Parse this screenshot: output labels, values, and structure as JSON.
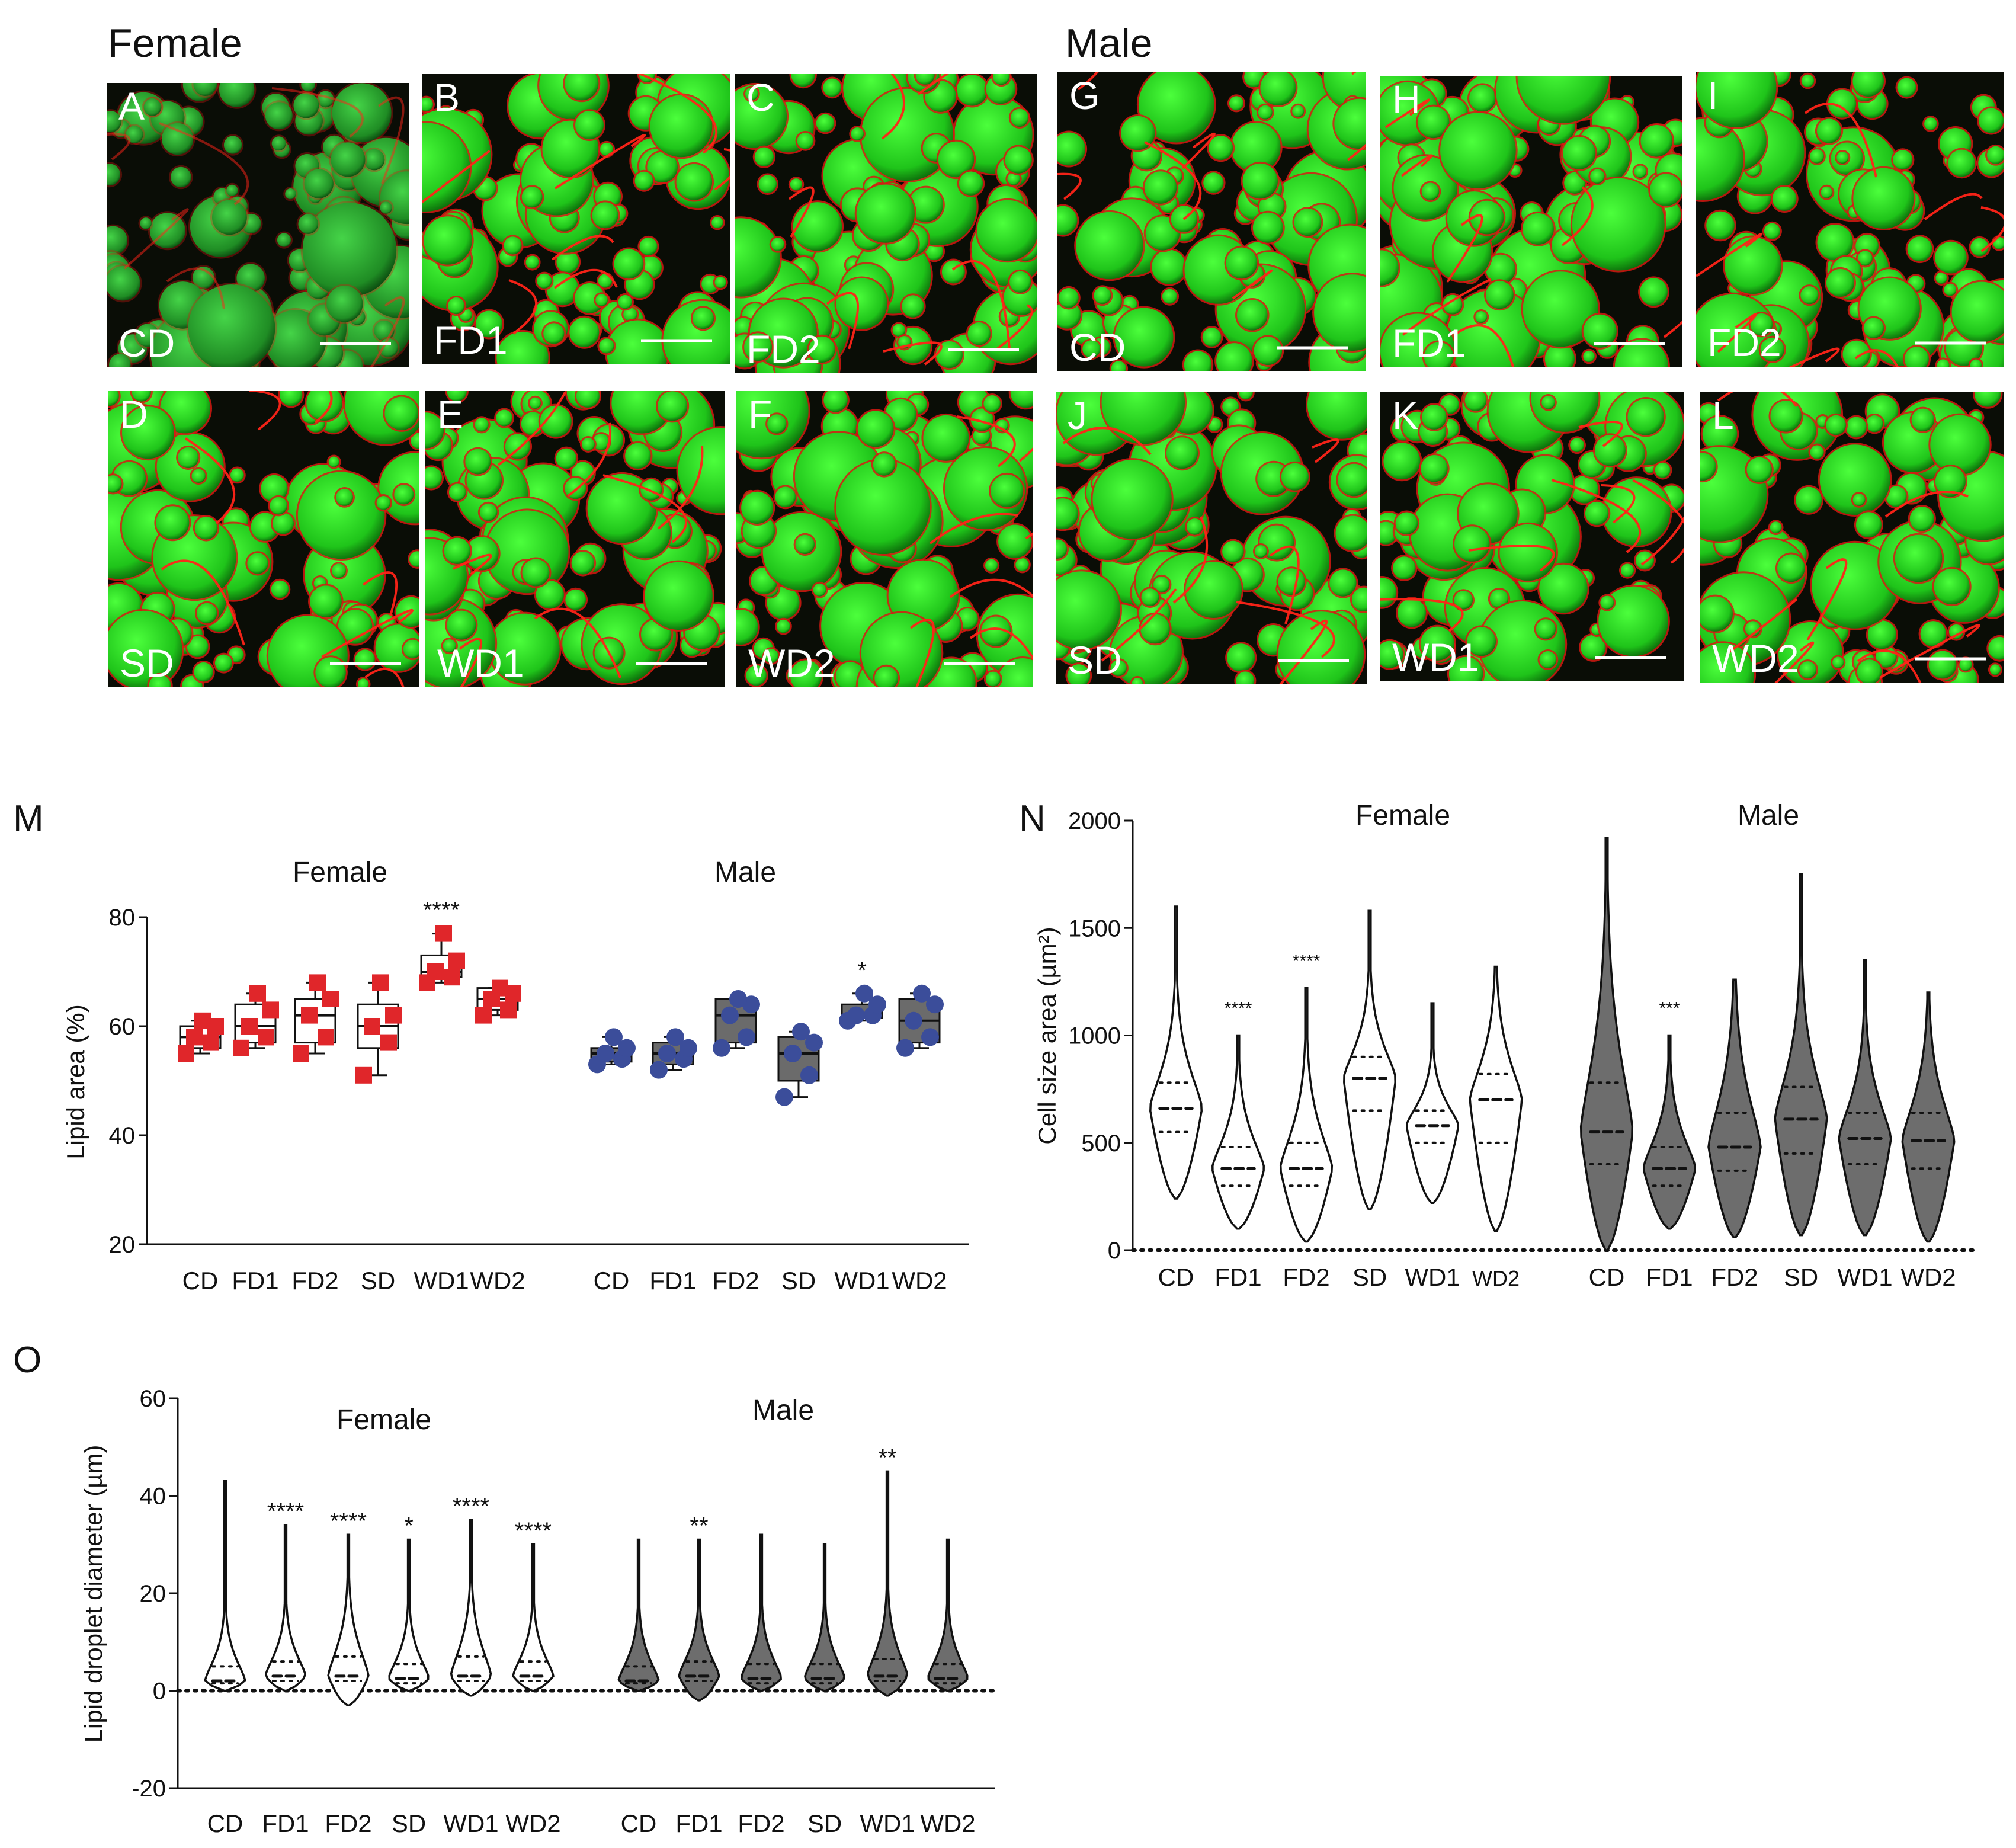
{
  "headers": {
    "female": "Female",
    "male": "Male"
  },
  "micro_panels": [
    {
      "letter": "A",
      "diet": "CD"
    },
    {
      "letter": "B",
      "diet": "FD1"
    },
    {
      "letter": "C",
      "diet": "FD2"
    },
    {
      "letter": "D",
      "diet": "SD"
    },
    {
      "letter": "E",
      "diet": "WD1"
    },
    {
      "letter": "F",
      "diet": "WD2"
    },
    {
      "letter": "G",
      "diet": "CD"
    },
    {
      "letter": "H",
      "diet": "FD1"
    },
    {
      "letter": "I",
      "diet": "FD2"
    },
    {
      "letter": "J",
      "diet": "SD"
    },
    {
      "letter": "K",
      "diet": "WD1"
    },
    {
      "letter": "L",
      "diet": "WD2"
    }
  ],
  "colors": {
    "female_marker": "#e0262a",
    "male_marker": "#3b4d9a",
    "male_fill": "#6b6b6b",
    "droplet_green": "#22d41c",
    "membrane_red": "#e31b13"
  },
  "chart_data": [
    {
      "panel": "M",
      "type": "box",
      "ylabel": "Lipid area (%)",
      "ylim": [
        20,
        80
      ],
      "yticks": [
        20,
        40,
        60,
        80
      ],
      "groups": [
        "Female",
        "Male"
      ],
      "categories": [
        "CD",
        "FD1",
        "FD2",
        "SD",
        "WD1",
        "WD2"
      ],
      "series": [
        {
          "name": "Female",
          "boxes": [
            {
              "min": 55,
              "q1": 56,
              "median": 58,
              "q3": 60,
              "max": 61,
              "points": [
                55,
                57,
                58,
                60,
                61
              ],
              "sig": ""
            },
            {
              "min": 56,
              "q1": 57,
              "median": 60,
              "q3": 64,
              "max": 66,
              "points": [
                56,
                58,
                60,
                63,
                66
              ],
              "sig": ""
            },
            {
              "min": 55,
              "q1": 57,
              "median": 62,
              "q3": 65,
              "max": 68,
              "points": [
                55,
                58,
                62,
                65,
                68
              ],
              "sig": ""
            },
            {
              "min": 51,
              "q1": 56,
              "median": 60,
              "q3": 64,
              "max": 68,
              "points": [
                51,
                57,
                60,
                62,
                68
              ],
              "sig": ""
            },
            {
              "min": 68,
              "q1": 69,
              "median": 70,
              "q3": 73,
              "max": 77,
              "points": [
                68,
                69,
                70,
                72,
                77
              ],
              "sig": "****"
            },
            {
              "min": 62,
              "q1": 63,
              "median": 65,
              "q3": 67,
              "max": 67,
              "points": [
                62,
                63,
                65,
                66,
                67
              ],
              "sig": ""
            }
          ]
        },
        {
          "name": "Male",
          "boxes": [
            {
              "min": 53,
              "q1": 53.5,
              "median": 55,
              "q3": 56,
              "max": 58,
              "points": [
                53,
                54,
                55,
                56,
                58
              ],
              "sig": ""
            },
            {
              "min": 52,
              "q1": 53,
              "median": 55,
              "q3": 57,
              "max": 58,
              "points": [
                52,
                54,
                55,
                56,
                58
              ],
              "sig": ""
            },
            {
              "min": 56,
              "q1": 57,
              "median": 62,
              "q3": 65,
              "max": 65,
              "points": [
                56,
                58,
                62,
                64,
                65
              ],
              "sig": ""
            },
            {
              "min": 47,
              "q1": 50,
              "median": 55,
              "q3": 58,
              "max": 59,
              "points": [
                47,
                51,
                55,
                57,
                59
              ],
              "sig": ""
            },
            {
              "min": 61,
              "q1": 61.5,
              "median": 62,
              "q3": 64,
              "max": 66,
              "points": [
                61,
                62,
                62,
                64,
                66
              ],
              "sig": "*"
            },
            {
              "min": 56,
              "q1": 57,
              "median": 61,
              "q3": 65,
              "max": 66,
              "points": [
                56,
                58,
                61,
                64,
                66
              ],
              "sig": ""
            }
          ]
        }
      ]
    },
    {
      "panel": "N",
      "type": "violin",
      "ylabel": "Cell size area (µm²)",
      "ylim": [
        0,
        2000
      ],
      "yticks": [
        0,
        500,
        1000,
        1500,
        2000
      ],
      "groups": [
        "Female",
        "Male"
      ],
      "categories": [
        "CD",
        "FD1",
        "FD2",
        "SD",
        "WD1",
        "WD2"
      ],
      "series": [
        {
          "name": "Female",
          "violins": [
            {
              "min": 240,
              "max": 1600,
              "q1": 550,
              "median": 660,
              "q3": 780,
              "sig": ""
            },
            {
              "min": 100,
              "max": 1000,
              "q1": 300,
              "median": 380,
              "q3": 480,
              "sig": "****"
            },
            {
              "min": 40,
              "max": 1220,
              "q1": 300,
              "median": 380,
              "q3": 500,
              "sig": "****"
            },
            {
              "min": 190,
              "max": 1580,
              "q1": 650,
              "median": 800,
              "q3": 900,
              "sig": ""
            },
            {
              "min": 220,
              "max": 1150,
              "q1": 500,
              "median": 580,
              "q3": 650,
              "sig": ""
            },
            {
              "min": 90,
              "max": 1320,
              "q1": 500,
              "median": 700,
              "q3": 820,
              "sig": ""
            }
          ]
        },
        {
          "name": "Male",
          "violins": [
            {
              "min": 0,
              "max": 1920,
              "q1": 400,
              "median": 550,
              "q3": 780,
              "sig": ""
            },
            {
              "min": 100,
              "max": 1000,
              "q1": 300,
              "median": 380,
              "q3": 480,
              "sig": "***"
            },
            {
              "min": 60,
              "max": 1260,
              "q1": 370,
              "median": 480,
              "q3": 640,
              "sig": ""
            },
            {
              "min": 70,
              "max": 1750,
              "q1": 450,
              "median": 610,
              "q3": 760,
              "sig": ""
            },
            {
              "min": 70,
              "max": 1350,
              "q1": 400,
              "median": 520,
              "q3": 640,
              "sig": ""
            },
            {
              "min": 40,
              "max": 1200,
              "q1": 380,
              "median": 510,
              "q3": 640,
              "sig": ""
            }
          ]
        }
      ]
    },
    {
      "panel": "O",
      "type": "violin",
      "ylabel": "Lipid droplet diameter (µm)",
      "ylim": [
        -20,
        60
      ],
      "yticks": [
        -20,
        0,
        20,
        40,
        60
      ],
      "groups": [
        "Female",
        "Male"
      ],
      "categories": [
        "CD",
        "FD1",
        "FD2",
        "SD",
        "WD1",
        "WD2"
      ],
      "series": [
        {
          "name": "Female",
          "violins": [
            {
              "min": 0,
              "max": 43,
              "q1": 1.5,
              "median": 2,
              "q3": 3,
              "sig": ""
            },
            {
              "min": 0,
              "max": 34,
              "q1": 2,
              "median": 3,
              "q3": 4,
              "sig": "****"
            },
            {
              "min": -3,
              "max": 32,
              "q1": 2,
              "median": 3,
              "q3": 5,
              "sig": "****"
            },
            {
              "min": 0,
              "max": 31,
              "q1": 1.5,
              "median": 2.5,
              "q3": 3.5,
              "sig": "*"
            },
            {
              "min": -1,
              "max": 35,
              "q1": 2,
              "median": 3,
              "q3": 5,
              "sig": "****"
            },
            {
              "min": 0,
              "max": 30,
              "q1": 2,
              "median": 3,
              "q3": 4,
              "sig": "****"
            }
          ]
        },
        {
          "name": "Male",
          "violins": [
            {
              "min": 0,
              "max": 31,
              "q1": 1.5,
              "median": 2,
              "q3": 3,
              "sig": ""
            },
            {
              "min": -2,
              "max": 31,
              "q1": 2,
              "median": 3,
              "q3": 4,
              "sig": "**"
            },
            {
              "min": 0,
              "max": 32,
              "q1": 1.5,
              "median": 2.5,
              "q3": 3.5,
              "sig": ""
            },
            {
              "min": 0,
              "max": 30,
              "q1": 1.5,
              "median": 2.5,
              "q3": 3.5,
              "sig": ""
            },
            {
              "min": -1,
              "max": 45,
              "q1": 2,
              "median": 3,
              "q3": 4.5,
              "sig": "**"
            },
            {
              "min": 0,
              "max": 31,
              "q1": 1.5,
              "median": 2.5,
              "q3": 3.5,
              "sig": ""
            }
          ]
        }
      ]
    }
  ]
}
